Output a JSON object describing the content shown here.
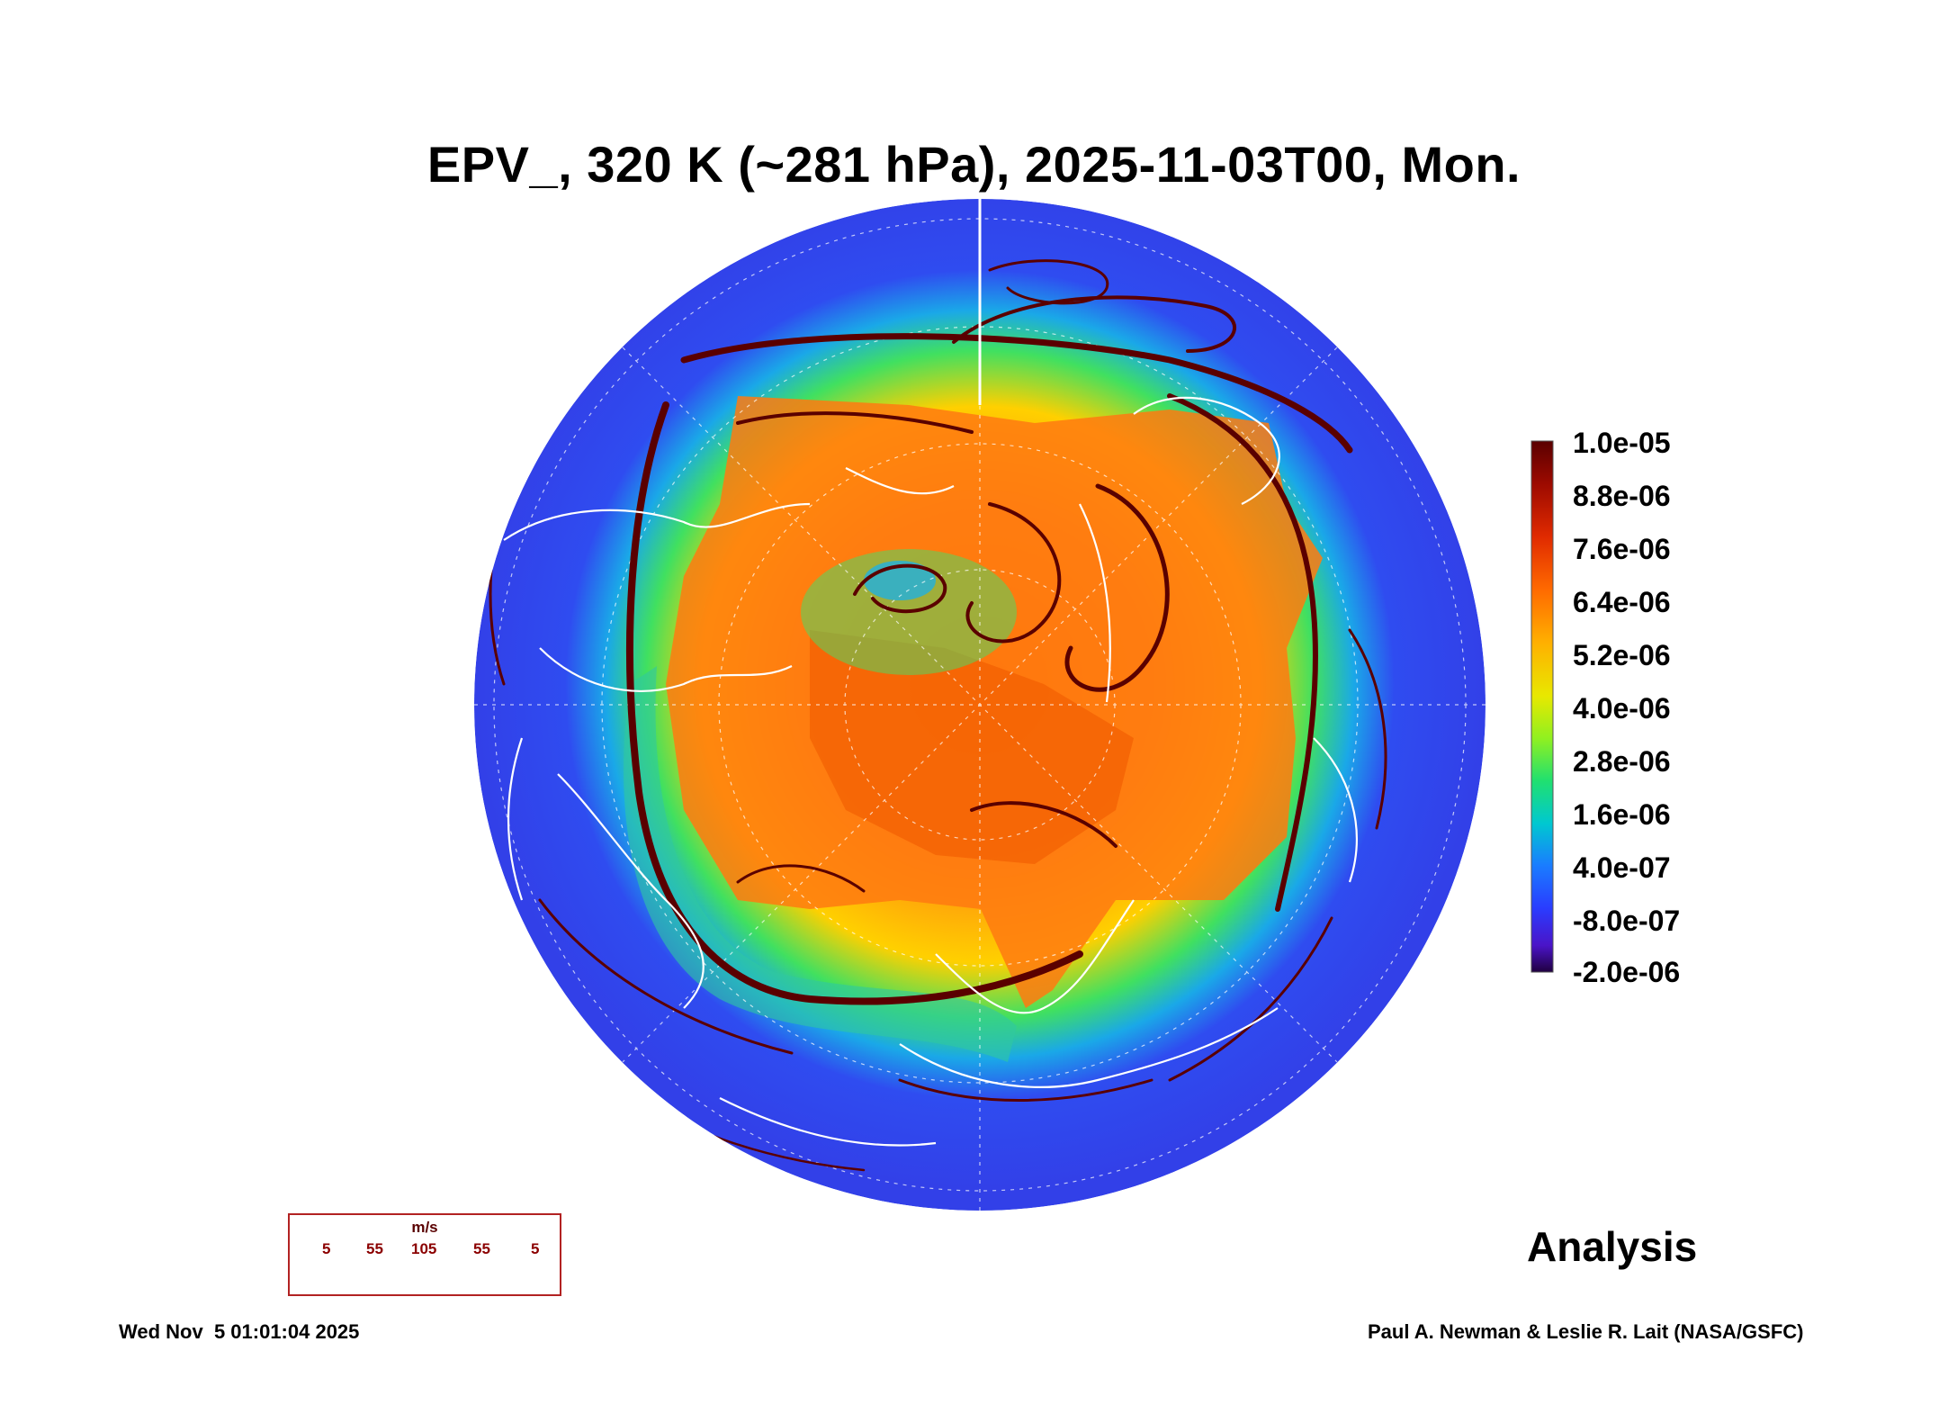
{
  "title": "EPV_, 320 K (~281 hPa), 2025-11-03T00, Mon.",
  "colorbar": {
    "labels": [
      "1.0e-05",
      "8.8e-06",
      "7.6e-06",
      "6.4e-06",
      "5.2e-06",
      "4.0e-06",
      "2.8e-06",
      "1.6e-06",
      "4.0e-07",
      "-8.0e-07",
      "-2.0e-06"
    ],
    "colors": [
      "#6b0000",
      "#9c0a00",
      "#d42000",
      "#ff5a00",
      "#ff9a00",
      "#ffd000",
      "#c8f000",
      "#3fe05a",
      "#00c0c8",
      "#1a7cff",
      "#2a3cff",
      "#4a14c8",
      "#2a0050"
    ]
  },
  "legend": {
    "unit": "m/s",
    "values": [
      "5",
      "55",
      "105",
      "55",
      "5"
    ]
  },
  "analysis_label": "Analysis",
  "footer": {
    "timestamp": "Wed Nov  5 01:01:04 2025",
    "credit": "Paul A. Newman & Leslie R. Lait (NASA/GSFC)"
  },
  "colors": {
    "ocean_field": "#2f4cf0",
    "streamline": "#5a0000",
    "coastline": "#ffffff"
  }
}
